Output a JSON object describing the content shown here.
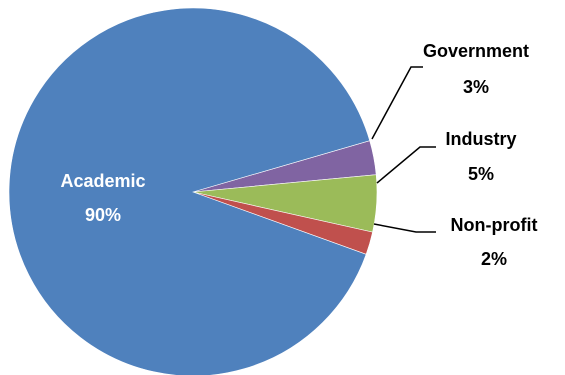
{
  "chart_data": {
    "type": "pie",
    "title": "",
    "slices": [
      {
        "name": "Academic",
        "value": 90,
        "pct_label": "90%",
        "color": "#4F81BD"
      },
      {
        "name": "Government",
        "value": 3,
        "pct_label": "3%",
        "color": "#8064A2"
      },
      {
        "name": "Industry",
        "value": 5,
        "pct_label": "5%",
        "color": "#9BBB59"
      },
      {
        "name": "Non-profit",
        "value": 2,
        "pct_label": "2%",
        "color": "#C0504D"
      }
    ],
    "legend": "none",
    "data_labels": "name and percent"
  }
}
